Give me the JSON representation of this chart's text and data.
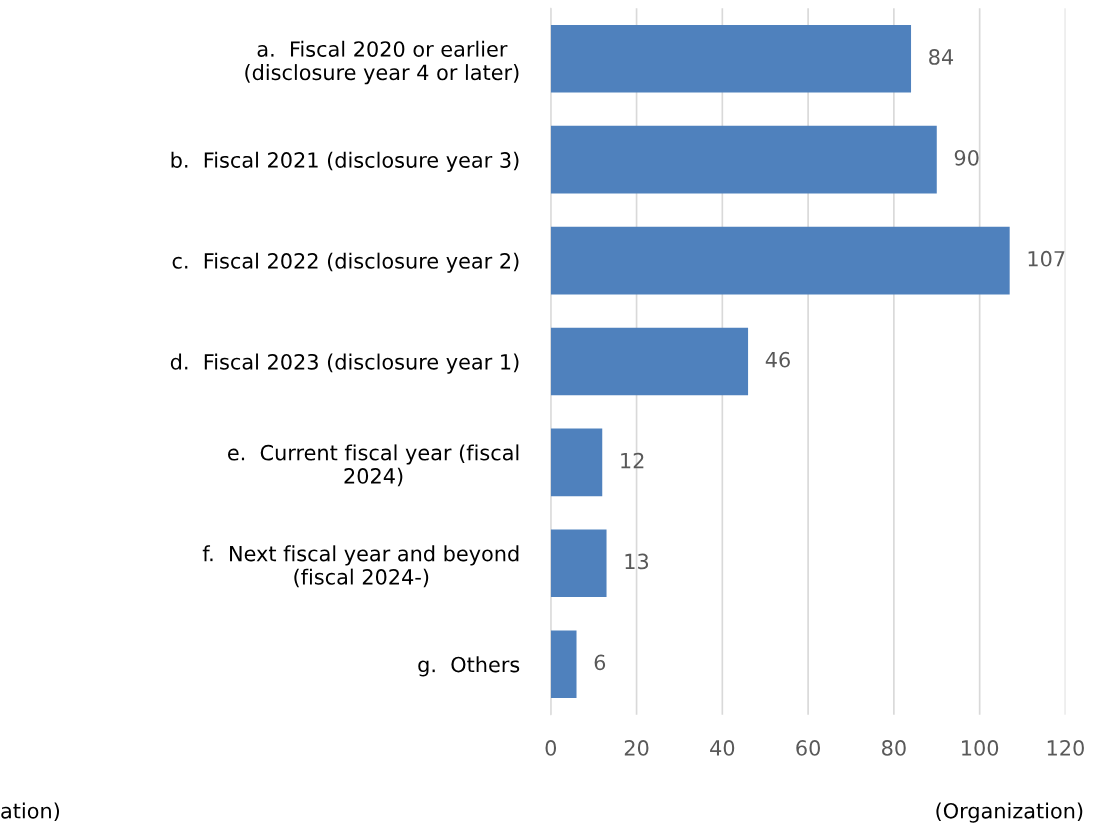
{
  "chart_data": {
    "type": "bar",
    "orientation": "horizontal",
    "categories": [
      "a.  Fiscal 2020 or earlier\n(disclosure year 4 or later)",
      "b.  Fiscal 2021 (disclosure year 3)",
      "c.  Fiscal 2022 (disclosure year 2)",
      "d.  Fiscal 2023 (disclosure year 1)",
      "e.  Current fiscal year (fiscal\n2024)",
      "f.  Next fiscal year and beyond\n(fiscal 2024-)",
      "g.  Others"
    ],
    "values": [
      84,
      90,
      107,
      46,
      12,
      13,
      6
    ],
    "color": "#4f81bd",
    "xlim": [
      0,
      120
    ],
    "xticks": [
      0,
      20,
      40,
      60,
      80,
      100,
      120
    ],
    "xlabel": "(Organization)",
    "grid": "x",
    "data_labels": true,
    "annotations": [
      "ation)"
    ]
  }
}
